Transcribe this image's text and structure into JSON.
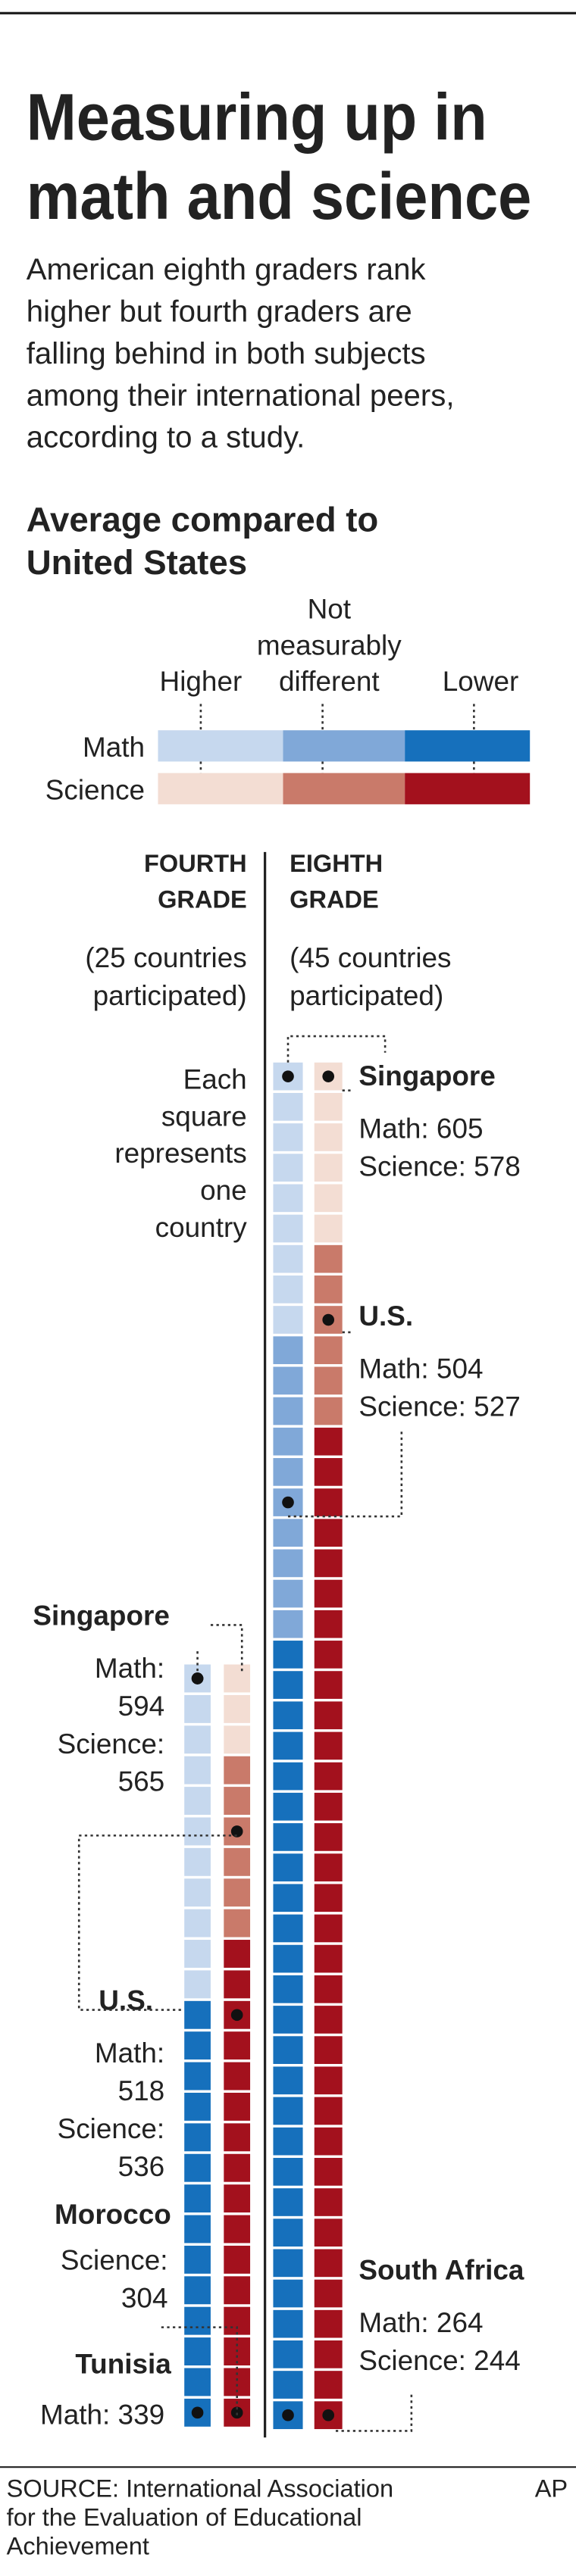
{
  "title": [
    "Measuring up in",
    "math and science"
  ],
  "subtitle": [
    "American eighth graders rank",
    "higher but fourth graders are",
    "falling behind in both subjects",
    "among their international peers,",
    "according to a study."
  ],
  "legend": {
    "heading": [
      "Average compared to",
      "United States"
    ],
    "categories": [
      [
        "Higher"
      ],
      [
        "Not",
        "measurably",
        "different"
      ],
      [
        "Lower"
      ]
    ],
    "rows": [
      "Math",
      "Science"
    ],
    "colors": {
      "math": [
        "#c6d8ee",
        "#80a8d8",
        "#1670bc"
      ],
      "science": [
        "#f3ddd3",
        "#c97a6a",
        "#a3111d"
      ]
    }
  },
  "note": [
    "Each",
    "square",
    "represents",
    "one",
    "country"
  ],
  "grades": [
    {
      "heading": [
        "FOURTH",
        "GRADE"
      ],
      "participants": [
        "(25 countries",
        "participated)"
      ],
      "math": [
        11,
        0,
        14
      ],
      "science": [
        3,
        6,
        16
      ],
      "annotations": [
        {
          "country": "Singapore",
          "lines": [
            "Math:",
            "594",
            "Science:",
            "565"
          ]
        },
        {
          "country": "U.S.",
          "lines": [
            "Math:",
            "518",
            "Science:",
            "536"
          ]
        },
        {
          "country": "Morocco",
          "lines": [
            "Science:",
            "304"
          ]
        },
        {
          "country": "Tunisia",
          "lines": [
            "Math: 339"
          ]
        }
      ]
    },
    {
      "heading": [
        "EIGHTH",
        "GRADE"
      ],
      "participants": [
        "(45 countries",
        "participated)"
      ],
      "math": [
        9,
        10,
        26
      ],
      "science": [
        6,
        6,
        33
      ],
      "annotations": [
        {
          "country": "Singapore",
          "lines": [
            "Math: 605",
            "Science: 578"
          ]
        },
        {
          "country": "U.S.",
          "lines": [
            "Math: 504",
            "Science: 527"
          ]
        },
        {
          "country": "South Africa",
          "lines": [
            "Math: 264",
            "Science: 244"
          ]
        }
      ]
    }
  ],
  "source": [
    "SOURCE: International Association",
    "for the Evaluation of Educational",
    "Achievement"
  ],
  "credit": "AP"
}
